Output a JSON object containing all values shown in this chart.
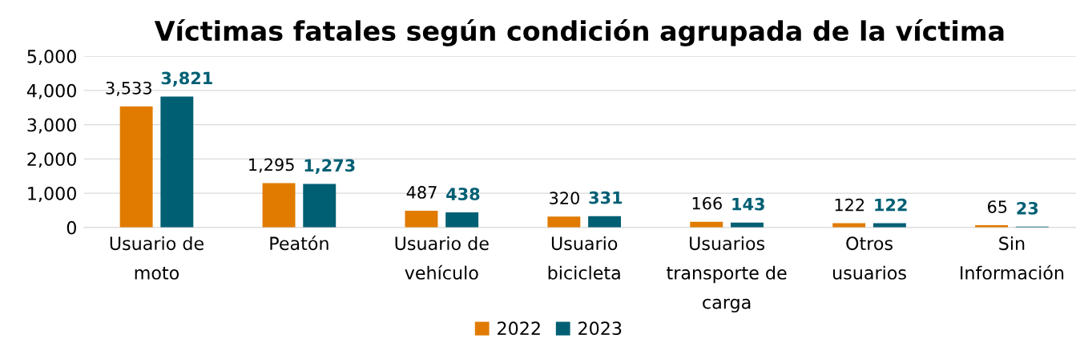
{
  "chart_data": {
    "type": "bar",
    "title": "Víctimas fatales según condición agrupada de la víctima",
    "categories": [
      "Usuario de\nmoto",
      "Peatón",
      "Usuario de\nvehículo",
      "Usuario\nbicicleta",
      "Usuarios\ntransporte de\ncarga",
      "Otros\nusuarios",
      "Sin\nInformación"
    ],
    "series": [
      {
        "name": "2022",
        "color": "#e07b00",
        "values": [
          3533,
          1295,
          487,
          320,
          166,
          122,
          65
        ],
        "value_labels": [
          "3,533",
          "1,295",
          "487",
          "320",
          "166",
          "122",
          "65"
        ]
      },
      {
        "name": "2023",
        "color": "#005f73",
        "values": [
          3821,
          1273,
          438,
          331,
          143,
          122,
          23
        ],
        "value_labels": [
          "3,821",
          "1,273",
          "438",
          "331",
          "143",
          "122",
          "23"
        ]
      }
    ],
    "ylim": [
      0,
      5000
    ],
    "yticks": [
      0,
      {
        "value": 1000,
        "label": "1,000"
      },
      {
        "value": 2000,
        "label": "2,000"
      },
      {
        "value": 3000,
        "label": "3,000"
      },
      {
        "value": 4000,
        "label": "4,000"
      },
      {
        "value": 5000,
        "label": "5,000"
      }
    ],
    "grid": "y",
    "legend": "bottom"
  }
}
